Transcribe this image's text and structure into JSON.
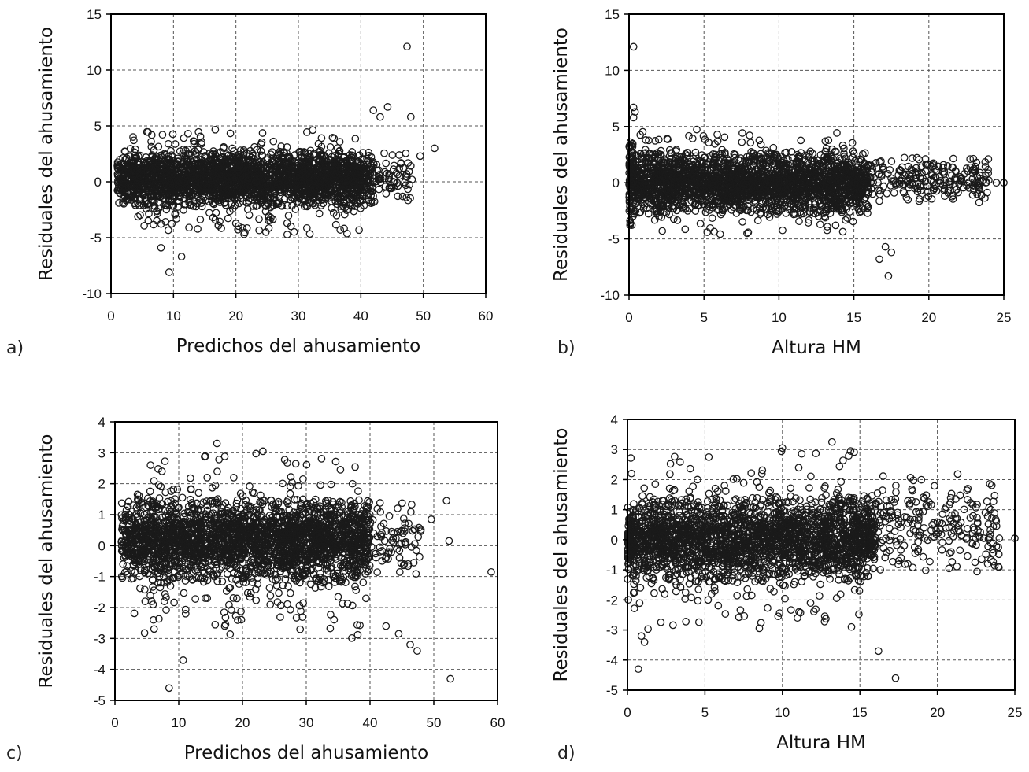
{
  "chart_data": [
    {
      "id": "a",
      "type": "scatter",
      "panel_label": "a)",
      "xlabel": "Predichos del ahusamiento",
      "ylabel": "Residuales del ahusamiento",
      "xlim": [
        0,
        60
      ],
      "ylim": [
        -10,
        15
      ],
      "xticks": [
        0,
        10,
        20,
        30,
        40,
        50,
        60
      ],
      "yticks": [
        -10,
        -5,
        0,
        5,
        10,
        15
      ],
      "grid": true,
      "outliers": [
        [
          47.4,
          12.1
        ],
        [
          42,
          6.4
        ],
        [
          44.3,
          6.7
        ],
        [
          43.1,
          5.8
        ],
        [
          48,
          5.8
        ],
        [
          51.8,
          3
        ],
        [
          49.5,
          2.3
        ],
        [
          9.3,
          -8.1
        ],
        [
          11.3,
          -6.7
        ],
        [
          8,
          -5.9
        ],
        [
          36.7,
          -4.3
        ],
        [
          47.3,
          -1.4
        ],
        [
          48.2,
          0.2
        ]
      ],
      "cloud": [
        {
          "x": [
            1,
            42
          ],
          "y": [
            -2.2,
            2.8
          ],
          "n": 2200
        },
        {
          "x": [
            3,
            40
          ],
          "y": [
            -4.8,
            4.8
          ],
          "n": 500
        },
        {
          "x": [
            38,
            48
          ],
          "y": [
            -2.2,
            2.8
          ],
          "n": 90
        }
      ]
    },
    {
      "id": "b",
      "type": "scatter",
      "panel_label": "b)",
      "xlabel": "Altura HM",
      "ylabel": "Residuales del ahusamiento",
      "xlim": [
        0,
        25
      ],
      "ylim": [
        -10,
        15
      ],
      "xticks": [
        0,
        5,
        10,
        15,
        20,
        25
      ],
      "yticks": [
        -10,
        -5,
        0,
        5,
        10,
        15
      ],
      "grid": true,
      "outliers": [
        [
          0.3,
          12.1
        ],
        [
          0.3,
          6.7
        ],
        [
          0.4,
          6.3
        ],
        [
          0.3,
          5.8
        ],
        [
          17.3,
          -8.3
        ],
        [
          16.7,
          -6.8
        ],
        [
          17.5,
          -6.2
        ],
        [
          17.1,
          -5.7
        ],
        [
          23.8,
          0
        ],
        [
          24.5,
          0
        ],
        [
          25,
          0
        ]
      ],
      "cloud": [
        {
          "x": [
            0,
            16
          ],
          "y": [
            -2.8,
            2.8
          ],
          "n": 2000
        },
        {
          "x": [
            0,
            15
          ],
          "y": [
            -4.8,
            4.8
          ],
          "n": 450
        },
        {
          "x": [
            15,
            24
          ],
          "y": [
            -1.8,
            2.5
          ],
          "n": 260
        },
        {
          "x": [
            0,
            0.3
          ],
          "y": [
            -4,
            4
          ],
          "n": 80
        }
      ]
    },
    {
      "id": "c",
      "type": "scatter",
      "panel_label": "c)",
      "xlabel": "Predichos del ahusamiento",
      "ylabel": "Residuales del ahusamiento",
      "xlim": [
        0,
        60
      ],
      "ylim": [
        -5,
        4
      ],
      "xticks": [
        0,
        10,
        20,
        30,
        40,
        50,
        60
      ],
      "yticks": [
        -5,
        -4,
        -3,
        -2,
        -1,
        0,
        1,
        2,
        3,
        4
      ],
      "grid": true,
      "outliers": [
        [
          8.5,
          -4.6
        ],
        [
          10.7,
          -3.7
        ],
        [
          52.6,
          -4.3
        ],
        [
          59,
          -0.85
        ],
        [
          52.4,
          0.15
        ],
        [
          52,
          1.45
        ],
        [
          49.6,
          0.85
        ],
        [
          46.3,
          -3.2
        ],
        [
          47.4,
          -3.4
        ],
        [
          44.5,
          -2.85
        ],
        [
          42.5,
          -2.6
        ],
        [
          16,
          3.3
        ],
        [
          23.2,
          3.05
        ]
      ],
      "cloud": [
        {
          "x": [
            1,
            40
          ],
          "y": [
            -1.2,
            1.5
          ],
          "n": 2200
        },
        {
          "x": [
            3,
            40
          ],
          "y": [
            -3,
            3
          ],
          "n": 500
        },
        {
          "x": [
            38,
            48
          ],
          "y": [
            -1.2,
            1.4
          ],
          "n": 90
        }
      ]
    },
    {
      "id": "d",
      "type": "scatter",
      "panel_label": "d)",
      "xlabel": "Altura HM",
      "ylabel": "Residuales del ahusamiento",
      "xlim": [
        0,
        25
      ],
      "ylim": [
        -5,
        4
      ],
      "xticks": [
        0,
        5,
        10,
        15,
        20,
        25
      ],
      "yticks": [
        -5,
        -4,
        -3,
        -2,
        -1,
        0,
        1,
        2,
        3,
        4
      ],
      "grid": true,
      "outliers": [
        [
          0.7,
          -4.3
        ],
        [
          17.3,
          -4.6
        ],
        [
          16.2,
          -3.7
        ],
        [
          0.9,
          -3.2
        ],
        [
          1.1,
          -3.4
        ],
        [
          13.2,
          3.25
        ],
        [
          10,
          3.05
        ],
        [
          14.4,
          2.95
        ],
        [
          23,
          0.05
        ],
        [
          24,
          0.05
        ],
        [
          25,
          0.05
        ]
      ],
      "cloud": [
        {
          "x": [
            0,
            16
          ],
          "y": [
            -1.4,
            1.4
          ],
          "n": 2000
        },
        {
          "x": [
            0,
            15
          ],
          "y": [
            -3,
            3
          ],
          "n": 450
        },
        {
          "x": [
            15,
            24
          ],
          "y": [
            -1.1,
            2.2
          ],
          "n": 260
        },
        {
          "x": [
            0,
            0.4
          ],
          "y": [
            -1,
            1
          ],
          "n": 80
        }
      ]
    }
  ]
}
